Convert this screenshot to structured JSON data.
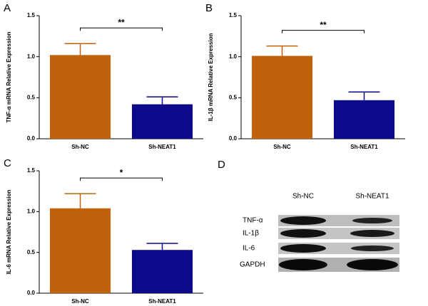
{
  "chart_data": [
    {
      "type": "bar",
      "panel": "A",
      "ylabel": "TNF-α mRNA Relative Expression",
      "categories": [
        "Sh-NC",
        "Sh-NEAT1"
      ],
      "values": [
        1.02,
        0.42
      ],
      "errors": [
        0.14,
        0.09
      ],
      "colors": [
        "#c0620b",
        "#0c0a8a"
      ],
      "significance": "**",
      "ylim": [
        0,
        1.5
      ],
      "yticks": [
        {
          "value": 0,
          "label": "0.0"
        },
        {
          "value": 0.5,
          "label": "0.5"
        },
        {
          "value": 1,
          "label": "1.0"
        },
        {
          "value": 1.5,
          "label": "1.5"
        }
      ]
    },
    {
      "type": "bar",
      "panel": "B",
      "ylabel": "IL-1β mRNA Relative Expression",
      "categories": [
        "Sh-NC",
        "Sh-NEAT1"
      ],
      "values": [
        1.01,
        0.47
      ],
      "errors": [
        0.12,
        0.1
      ],
      "colors": [
        "#c0620b",
        "#0c0a8a"
      ],
      "significance": "**",
      "ylim": [
        0,
        1.5
      ],
      "yticks": [
        {
          "value": 0,
          "label": "0.0"
        },
        {
          "value": 0.5,
          "label": "0.5"
        },
        {
          "value": 1,
          "label": "1.0"
        },
        {
          "value": 1.5,
          "label": "1.5"
        }
      ]
    },
    {
      "type": "bar",
      "panel": "C",
      "ylabel": "IL-6 mRNA Relative Expression",
      "categories": [
        "Sh-NC",
        "Sh-NEAT1"
      ],
      "values": [
        1.04,
        0.53
      ],
      "errors": [
        0.18,
        0.08
      ],
      "colors": [
        "#c0620b",
        "#0c0a8a"
      ],
      "significance": "*",
      "ylim": [
        0,
        1.5
      ],
      "yticks": [
        {
          "value": 0,
          "label": "0.0"
        },
        {
          "value": 0.5,
          "label": "0.5"
        },
        {
          "value": 1,
          "label": "1.0"
        },
        {
          "value": 1.5,
          "label": "1.5"
        }
      ]
    }
  ],
  "blot": {
    "panel": "D",
    "columns": [
      "Sh-NC",
      "Sh-NEAT1"
    ],
    "rows": [
      "TNF-α",
      "IL-1β",
      "IL-6",
      "GAPDH"
    ]
  }
}
